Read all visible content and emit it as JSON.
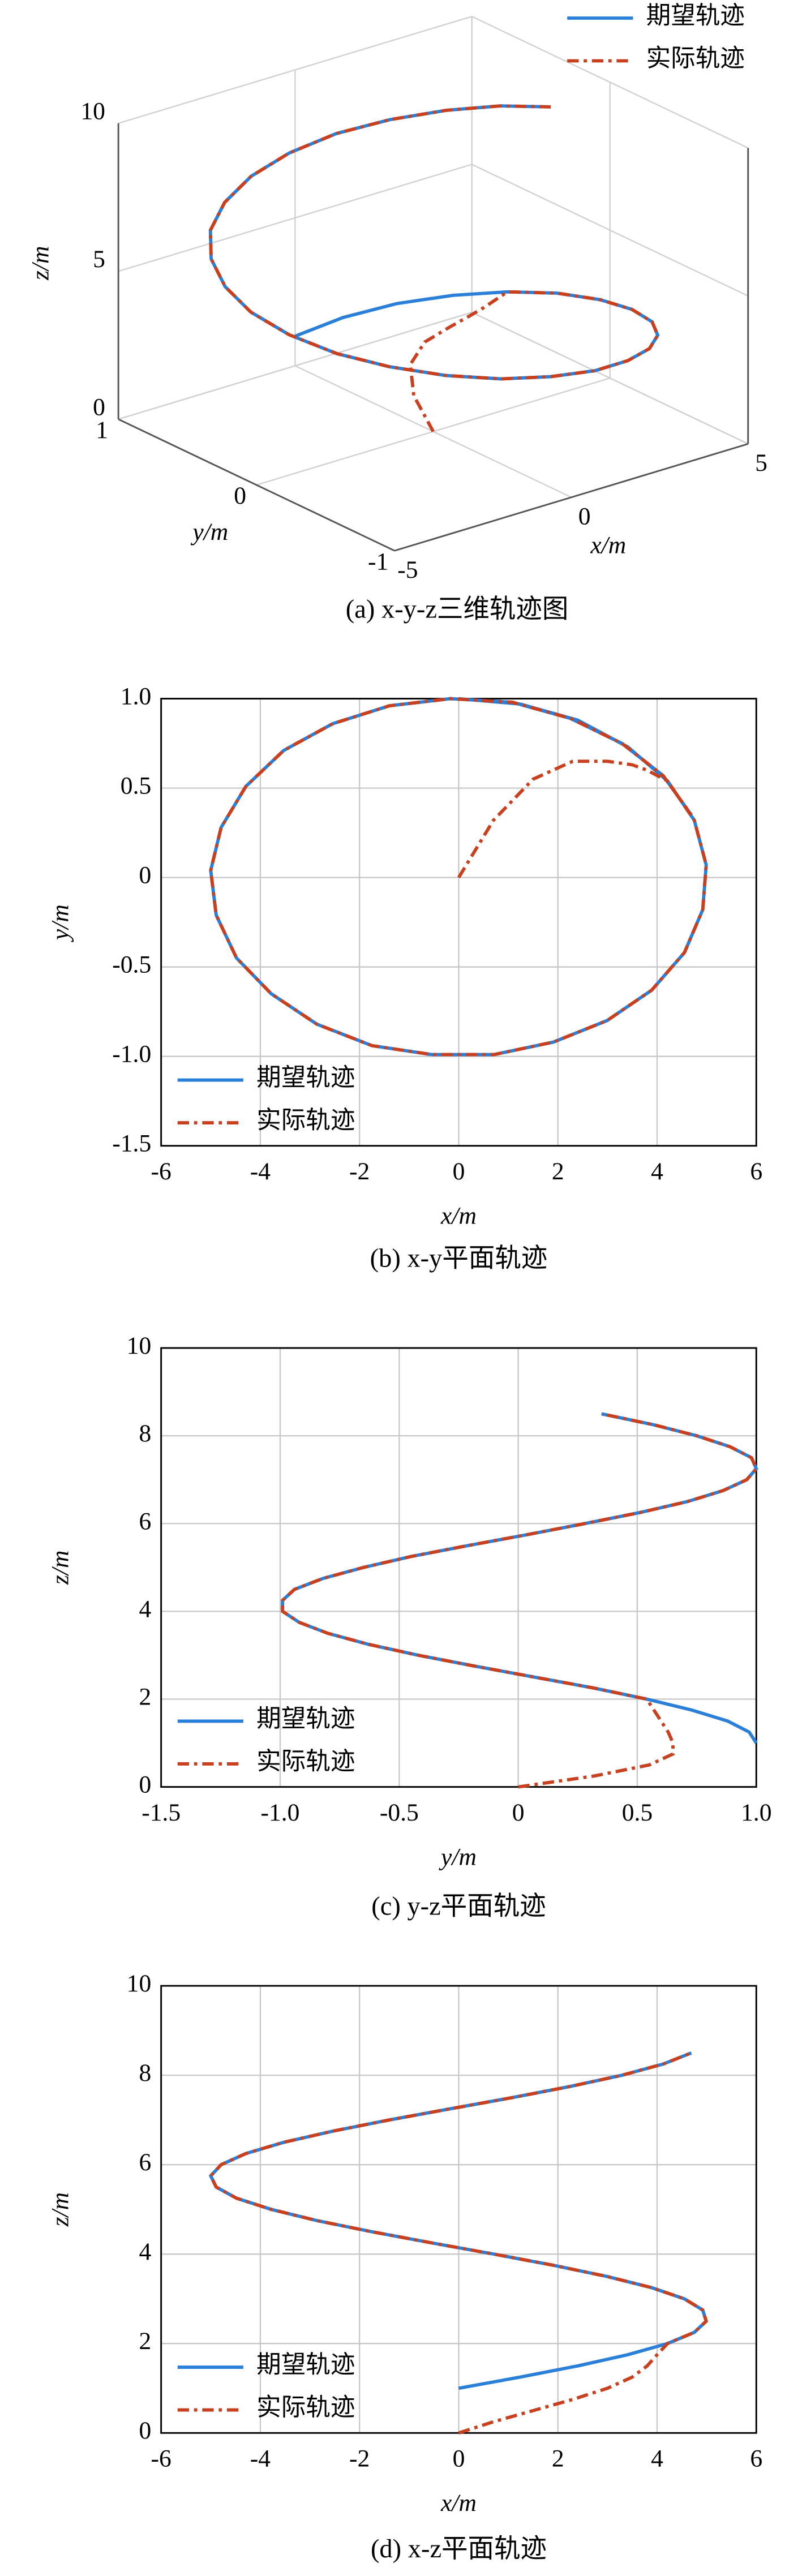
{
  "chart_data": [
    {
      "type": "line3d",
      "caption": "(a) x-y-z三维轨迹图",
      "xlabel": "x/m",
      "ylabel": "y/m",
      "zlabel": "z/m",
      "xlim": [
        -5,
        5
      ],
      "xticks": [
        -5,
        0,
        5
      ],
      "ylim": [
        -1,
        1
      ],
      "yticks": [
        -1,
        0,
        1
      ],
      "zlim": [
        0,
        10
      ],
      "zticks": [
        0,
        5,
        10
      ],
      "grid": true,
      "legend": "upper right",
      "series": [
        {
          "name": "期望轨迹",
          "color": "#2a7fd8",
          "linestyle": "solid",
          "x": [
            0,
            1.24,
            2.4,
            3.41,
            4.21,
            4.75,
            4.99,
            4.92,
            4.55,
            3.89,
            2.99,
            1.91,
            0.71,
            -0.54,
            -1.75,
            -2.86,
            -3.78,
            -4.48,
            -4.89,
            -5.0,
            -4.79,
            -4.29,
            -3.53,
            -2.54,
            -1.4,
            -0.17,
            1.08,
            2.25,
            3.29,
            4.12,
            4.69
          ],
          "y": [
            1,
            0.97,
            0.88,
            0.73,
            0.54,
            0.32,
            0.07,
            -0.18,
            -0.42,
            -0.63,
            -0.8,
            -0.92,
            -0.99,
            -0.99,
            -0.94,
            -0.82,
            -0.65,
            -0.45,
            -0.21,
            0.04,
            0.28,
            0.51,
            0.71,
            0.86,
            0.96,
            1.0,
            0.98,
            0.89,
            0.75,
            0.57,
            0.35
          ],
          "z": [
            1,
            1.25,
            1.5,
            1.75,
            2,
            2.25,
            2.5,
            2.75,
            3,
            3.25,
            3.5,
            3.75,
            4,
            4.25,
            4.5,
            4.75,
            5,
            5.25,
            5.5,
            5.75,
            6,
            6.25,
            6.5,
            6.75,
            7,
            7.25,
            7.5,
            7.75,
            8,
            8.25,
            8.5
          ]
        },
        {
          "name": "实际轨迹",
          "color": "#c8401e",
          "linestyle": "dashdot",
          "x": [
            0,
            0.7,
            1.5,
            2.3,
            3.0,
            3.5,
            3.8,
            4.0,
            4.21,
            4.75,
            4.99,
            4.92,
            4.55,
            3.89,
            2.99,
            1.91,
            0.71,
            -0.54,
            -1.75,
            -2.86,
            -3.78,
            -4.48,
            -4.89,
            -5.0,
            -4.79,
            -4.29,
            -3.53,
            -2.54,
            -1.4,
            -0.17,
            1.08,
            2.25,
            3.29,
            4.12,
            4.69
          ],
          "y": [
            0,
            0.32,
            0.55,
            0.65,
            0.65,
            0.63,
            0.6,
            0.57,
            0.54,
            0.32,
            0.07,
            -0.18,
            -0.42,
            -0.63,
            -0.8,
            -0.92,
            -0.99,
            -0.99,
            -0.94,
            -0.82,
            -0.65,
            -0.45,
            -0.21,
            0.04,
            0.28,
            0.51,
            0.71,
            0.86,
            0.96,
            1.0,
            0.98,
            0.89,
            0.75,
            0.57,
            0.35
          ],
          "z": [
            0,
            0.25,
            0.5,
            0.75,
            1,
            1.25,
            1.5,
            1.75,
            2,
            2.25,
            2.5,
            2.75,
            3,
            3.25,
            3.5,
            3.75,
            4,
            4.25,
            4.5,
            4.75,
            5,
            5.25,
            5.5,
            5.75,
            6,
            6.25,
            6.5,
            6.75,
            7,
            7.25,
            7.5,
            7.75,
            8,
            8.25,
            8.5
          ]
        }
      ]
    },
    {
      "type": "line",
      "caption": "(b) x-y平面轨迹",
      "xlabel": "x/m",
      "ylabel": "y/m",
      "xlim": [
        -6,
        6
      ],
      "xticks": [
        -6,
        -4,
        -2,
        0,
        2,
        4,
        6
      ],
      "ylim": [
        -1.5,
        1
      ],
      "yticks": [
        -1.5,
        {
          "value": -1,
          "label": "-1.0"
        },
        -0.5,
        0,
        0.5,
        {
          "value": 1,
          "label": "1.0"
        }
      ],
      "grid": true,
      "legend": "lower left",
      "series": [
        {
          "name": "期望轨迹",
          "color": "#2a7fd8",
          "linestyle": "solid",
          "x": [
            0,
            1.24,
            2.4,
            3.41,
            4.21,
            4.75,
            4.99,
            4.92,
            4.55,
            3.89,
            2.99,
            1.91,
            0.71,
            -0.54,
            -1.75,
            -2.86,
            -3.78,
            -4.48,
            -4.89,
            -5.0,
            -4.79,
            -4.29,
            -3.53,
            -2.54,
            -1.4,
            -0.17,
            1.08,
            2.25,
            3.29,
            4.12,
            4.69
          ],
          "values": [
            1,
            0.97,
            0.88,
            0.73,
            0.54,
            0.32,
            0.07,
            -0.18,
            -0.42,
            -0.63,
            -0.8,
            -0.92,
            -0.99,
            -0.99,
            -0.94,
            -0.82,
            -0.65,
            -0.45,
            -0.21,
            0.04,
            0.28,
            0.51,
            0.71,
            0.86,
            0.96,
            1.0,
            0.98,
            0.89,
            0.75,
            0.57,
            0.35
          ]
        },
        {
          "name": "实际轨迹",
          "color": "#c8401e",
          "linestyle": "dashdot",
          "x": [
            0,
            0.7,
            1.5,
            2.3,
            3.0,
            3.5,
            3.8,
            4.0,
            4.21,
            4.75,
            4.99,
            4.92,
            4.55,
            3.89,
            2.99,
            1.91,
            0.71,
            -0.54,
            -1.75,
            -2.86,
            -3.78,
            -4.48,
            -4.89,
            -5.0,
            -4.79,
            -4.29,
            -3.53,
            -2.54,
            -1.4,
            -0.17,
            1.08,
            2.25,
            3.29,
            4.12,
            4.69
          ],
          "values": [
            0,
            0.32,
            0.55,
            0.65,
            0.65,
            0.63,
            0.6,
            0.57,
            0.54,
            0.32,
            0.07,
            -0.18,
            -0.42,
            -0.63,
            -0.8,
            -0.92,
            -0.99,
            -0.99,
            -0.94,
            -0.82,
            -0.65,
            -0.45,
            -0.21,
            0.04,
            0.28,
            0.51,
            0.71,
            0.86,
            0.96,
            1.0,
            0.98,
            0.89,
            0.75,
            0.57,
            0.35
          ]
        }
      ]
    },
    {
      "type": "line",
      "caption": "(c) y-z平面轨迹",
      "xlabel": "y/m",
      "ylabel": "z/m",
      "xlim": [
        -1.5,
        1
      ],
      "xticks": [
        -1.5,
        {
          "value": -1,
          "label": "-1.0"
        },
        -0.5,
        0,
        0.5,
        {
          "value": 1,
          "label": "1.0"
        }
      ],
      "ylim": [
        0,
        10
      ],
      "yticks": [
        0,
        2,
        4,
        6,
        8,
        10
      ],
      "grid": true,
      "legend": "lower left",
      "series": [
        {
          "name": "期望轨迹",
          "color": "#2a7fd8",
          "linestyle": "solid",
          "x": [
            1,
            0.97,
            0.88,
            0.73,
            0.54,
            0.32,
            0.07,
            -0.18,
            -0.42,
            -0.63,
            -0.8,
            -0.92,
            -0.99,
            -0.99,
            -0.94,
            -0.82,
            -0.65,
            -0.45,
            -0.21,
            0.04,
            0.28,
            0.51,
            0.71,
            0.86,
            0.96,
            1.0,
            0.98,
            0.89,
            0.75,
            0.57,
            0.35
          ],
          "values": [
            1,
            1.25,
            1.5,
            1.75,
            2,
            2.25,
            2.5,
            2.75,
            3,
            3.25,
            3.5,
            3.75,
            4,
            4.25,
            4.5,
            4.75,
            5,
            5.25,
            5.5,
            5.75,
            6,
            6.25,
            6.5,
            6.75,
            7,
            7.25,
            7.5,
            7.75,
            8,
            8.25,
            8.5
          ]
        },
        {
          "name": "实际轨迹",
          "color": "#c8401e",
          "linestyle": "dashdot",
          "x": [
            0,
            0.32,
            0.55,
            0.65,
            0.65,
            0.63,
            0.6,
            0.57,
            0.54,
            0.32,
            0.07,
            -0.18,
            -0.42,
            -0.63,
            -0.8,
            -0.92,
            -0.99,
            -0.99,
            -0.94,
            -0.82,
            -0.65,
            -0.45,
            -0.21,
            0.04,
            0.28,
            0.51,
            0.71,
            0.86,
            0.96,
            1.0,
            0.98,
            0.89,
            0.75,
            0.57,
            0.35
          ],
          "values": [
            0,
            0.25,
            0.5,
            0.75,
            1,
            1.25,
            1.5,
            1.75,
            2,
            2.25,
            2.5,
            2.75,
            3,
            3.25,
            3.5,
            3.75,
            4,
            4.25,
            4.5,
            4.75,
            5,
            5.25,
            5.5,
            5.75,
            6,
            6.25,
            6.5,
            6.75,
            7,
            7.25,
            7.5,
            7.75,
            8,
            8.25,
            8.5
          ]
        }
      ]
    },
    {
      "type": "line",
      "caption": "(d) x-z平面轨迹",
      "xlabel": "x/m",
      "ylabel": "z/m",
      "xlim": [
        -6,
        6
      ],
      "xticks": [
        -6,
        -4,
        -2,
        0,
        2,
        4,
        6
      ],
      "ylim": [
        0,
        10
      ],
      "yticks": [
        0,
        2,
        4,
        6,
        8,
        10
      ],
      "grid": true,
      "legend": "lower left",
      "series": [
        {
          "name": "期望轨迹",
          "color": "#2a7fd8",
          "linestyle": "solid",
          "x": [
            0,
            1.24,
            2.4,
            3.41,
            4.21,
            4.75,
            4.99,
            4.92,
            4.55,
            3.89,
            2.99,
            1.91,
            0.71,
            -0.54,
            -1.75,
            -2.86,
            -3.78,
            -4.48,
            -4.89,
            -5.0,
            -4.79,
            -4.29,
            -3.53,
            -2.54,
            -1.4,
            -0.17,
            1.08,
            2.25,
            3.29,
            4.12,
            4.69
          ],
          "values": [
            1,
            1.25,
            1.5,
            1.75,
            2,
            2.25,
            2.5,
            2.75,
            3,
            3.25,
            3.5,
            3.75,
            4,
            4.25,
            4.5,
            4.75,
            5,
            5.25,
            5.5,
            5.75,
            6,
            6.25,
            6.5,
            6.75,
            7,
            7.25,
            7.5,
            7.75,
            8,
            8.25,
            8.5
          ]
        },
        {
          "name": "实际轨迹",
          "color": "#c8401e",
          "linestyle": "dashdot",
          "x": [
            0,
            0.7,
            1.5,
            2.3,
            3.0,
            3.5,
            3.8,
            4.0,
            4.21,
            4.75,
            4.99,
            4.92,
            4.55,
            3.89,
            2.99,
            1.91,
            0.71,
            -0.54,
            -1.75,
            -2.86,
            -3.78,
            -4.48,
            -4.89,
            -5.0,
            -4.79,
            -4.29,
            -3.53,
            -2.54,
            -1.4,
            -0.17,
            1.08,
            2.25,
            3.29,
            4.12,
            4.69
          ],
          "values": [
            0,
            0.25,
            0.5,
            0.75,
            1,
            1.25,
            1.5,
            1.75,
            2,
            2.25,
            2.5,
            2.75,
            3,
            3.25,
            3.5,
            3.75,
            4,
            4.25,
            4.5,
            4.75,
            5,
            5.25,
            5.5,
            5.75,
            6,
            6.25,
            6.5,
            6.75,
            7,
            7.25,
            7.5,
            7.75,
            8,
            8.25,
            8.5
          ]
        }
      ]
    }
  ]
}
